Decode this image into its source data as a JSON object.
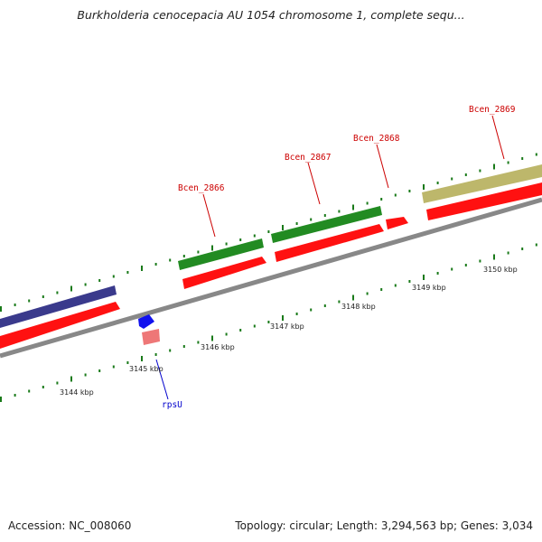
{
  "title": "Burkholderia cenocepacia AU 1054 chromosome 1, complete sequ...",
  "footer": {
    "accession": "Accession: NC_008060",
    "summary": "Topology: circular; Length: 3,294,563 bp; Genes: 3,034"
  },
  "colors": {
    "gene_label": "#cc0000",
    "rna_label": "#0000cc",
    "cds": "#ff1111",
    "rna_gene": "#ee7777",
    "rna_feature": "#1111ee",
    "tick": "#1a7a1a",
    "backbone": "#888888",
    "feature_green": "#228b22",
    "feature_purple": "#3a3a8c",
    "feature_khaki": "#bdb76b"
  },
  "scale_labels": [
    "3144 kbp",
    "3145 kbp",
    "3146 kbp",
    "3147 kbp",
    "3148 kbp",
    "3149 kbp",
    "3150 kbp"
  ],
  "gene_labels": [
    "Bcen_2866",
    "Bcen_2867",
    "Bcen_2868",
    "Bcen_2869",
    "rpsU"
  ]
}
